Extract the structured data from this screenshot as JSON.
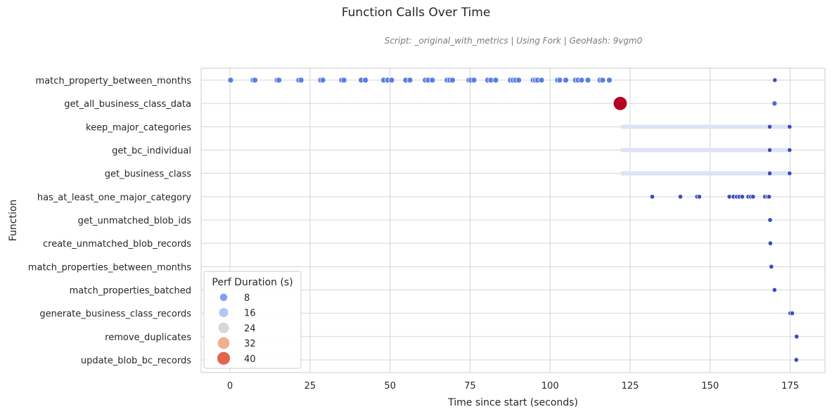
{
  "chart_data": {
    "type": "scatter",
    "title": "Function Calls Over Time",
    "subtitle": "Script: _original_with_metrics | Using Fork | GeoHash: 9vgm0",
    "xlabel": "Time since start (seconds)",
    "ylabel": "Function",
    "xlim": [
      -8,
      186
    ],
    "xticks": [
      0,
      25,
      50,
      75,
      100,
      125,
      150,
      175
    ],
    "grid": true,
    "categories": [
      "match_property_between_months",
      "get_all_business_class_data",
      "keep_major_categories",
      "get_bc_individual",
      "get_business_class",
      "has_at_least_one_major_category",
      "get_unmatched_blob_ids",
      "create_unmatched_blob_records",
      "match_properties_between_months",
      "match_properties_batched",
      "generate_business_class_records",
      "remove_duplicates",
      "update_blob_bc_records"
    ],
    "legend": {
      "title": "Perf Duration (s)",
      "position": "lower-left",
      "entries": [
        {
          "label": "8",
          "value": 8,
          "color": "#7b9ff2"
        },
        {
          "label": "16",
          "value": 16,
          "color": "#b0c8f7"
        },
        {
          "label": "24",
          "value": 24,
          "color": "#dcd6d3"
        },
        {
          "label": "32",
          "value": 32,
          "color": "#f3ad8f"
        },
        {
          "label": "40",
          "value": 40,
          "color": "#e1644f"
        }
      ]
    },
    "series": [
      {
        "function": "match_property_between_months",
        "duration": 2,
        "color": "#5a7de6",
        "x": [
          0.2,
          7.2,
          7.8,
          14.7,
          15.3,
          21.5,
          22.2,
          28.3,
          29.0,
          34.9,
          35.6,
          41.0,
          42.3,
          48.0,
          49.3,
          50.5,
          54.9,
          56.2,
          61.0,
          61.9,
          63.2,
          67.8,
          68.6,
          69.5,
          74.6,
          75.2,
          76.2,
          80.5,
          81.5,
          83.0,
          87.6,
          88.4,
          89.2,
          90.2,
          94.7,
          95.4,
          96.1,
          97.3,
          102.3,
          103.0,
          104.9,
          107.9,
          108.7,
          109.8,
          111.8,
          115.6,
          116.4,
          118.5
        ]
      },
      {
        "function": "match_property_between_months",
        "duration": 0.5,
        "color": "#3b4cc0",
        "x": [
          170.2
        ]
      },
      {
        "function": "get_all_business_class_data",
        "duration": 44,
        "color": "#b40426",
        "x": [
          121.9
        ]
      },
      {
        "function": "get_all_business_class_data",
        "duration": 1,
        "color": "#4f69d9",
        "x": [
          170.1
        ]
      },
      {
        "function": "keep_major_categories",
        "duration": 0.5,
        "color": "#3b4cc0",
        "x": [
          168.6,
          174.8
        ]
      },
      {
        "function": "get_bc_individual",
        "duration": 0.5,
        "color": "#3b4cc0",
        "x": [
          168.6,
          174.8
        ]
      },
      {
        "function": "get_business_class",
        "duration": 0.5,
        "color": "#3b4cc0",
        "x": [
          168.6,
          174.8
        ]
      },
      {
        "function": "has_at_least_one_major_category",
        "duration": 0.5,
        "color": "#3b4cc0",
        "x": [
          131.9,
          140.7,
          145.9,
          146.6,
          156.0,
          157.3,
          158.3,
          159.1,
          160.0,
          161.9,
          162.7,
          163.4,
          167.1,
          167.9,
          168.4
        ]
      },
      {
        "function": "get_unmatched_blob_ids",
        "duration": 0.5,
        "color": "#3b4cc0",
        "x": [
          168.7
        ]
      },
      {
        "function": "create_unmatched_blob_records",
        "duration": 0.5,
        "color": "#3b4cc0",
        "x": [
          168.8
        ]
      },
      {
        "function": "match_properties_between_months",
        "duration": 0.5,
        "color": "#3b4cc0",
        "x": [
          169.1
        ]
      },
      {
        "function": "match_properties_batched",
        "duration": 0.5,
        "color": "#3b4cc0",
        "x": [
          170.1
        ]
      },
      {
        "function": "generate_business_class_records",
        "duration": 0.5,
        "color": "#3b4cc0",
        "x": [
          175.0,
          175.6
        ]
      },
      {
        "function": "remove_duplicates",
        "duration": 0.5,
        "color": "#3b4cc0",
        "x": [
          177.0
        ]
      },
      {
        "function": "update_blob_bc_records",
        "duration": 0.5,
        "color": "#3b4cc0",
        "x": [
          176.9
        ]
      }
    ],
    "dense_bands": [
      {
        "function": "keep_major_categories",
        "x_start": 121.9,
        "x_end": 174.8,
        "color": "#dde3f6"
      },
      {
        "function": "get_bc_individual",
        "x_start": 121.9,
        "x_end": 174.8,
        "color": "#dde3f6"
      },
      {
        "function": "get_business_class",
        "x_start": 121.9,
        "x_end": 174.8,
        "color": "#dde3f6"
      }
    ]
  }
}
